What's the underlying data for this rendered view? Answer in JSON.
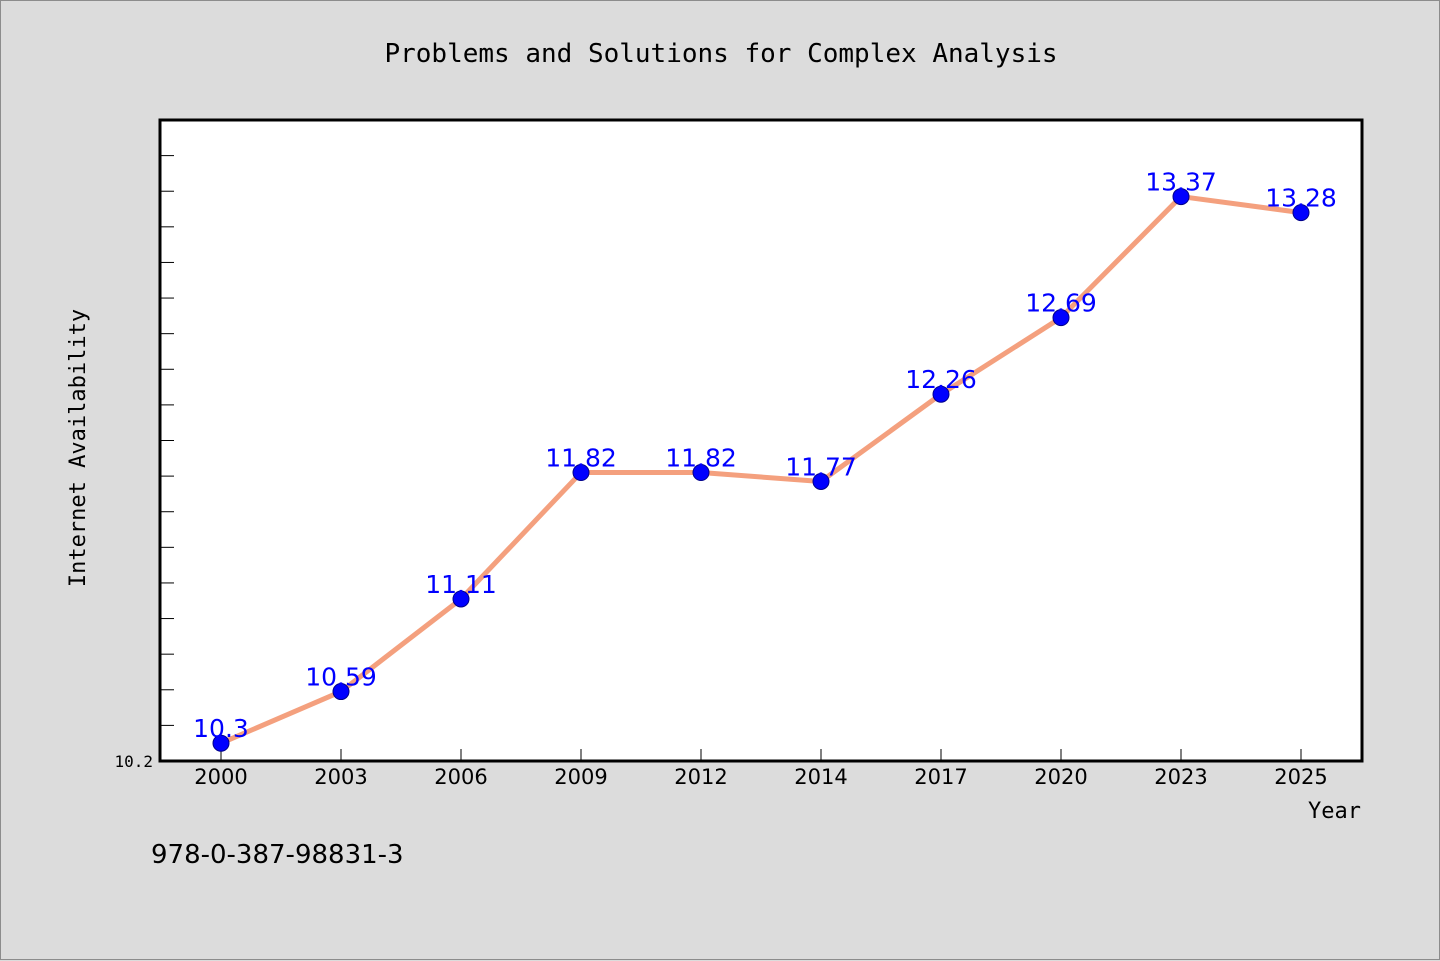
{
  "chart_data": {
    "type": "line",
    "title": "Problems and Solutions for Complex Analysis",
    "xlabel": "Year",
    "ylabel": "Internet Availability",
    "categories": [
      "2000",
      "2003",
      "2006",
      "2009",
      "2012",
      "2014",
      "2017",
      "2020",
      "2023",
      "2025"
    ],
    "series": [
      {
        "values": [
          10.3,
          10.59,
          11.11,
          11.82,
          11.82,
          11.77,
          12.26,
          12.69,
          13.37,
          13.28
        ],
        "labels": [
          "10.3",
          "10.59",
          "11.11",
          "11.82",
          "11.82",
          "11.77",
          "12.26",
          "12.69",
          "13.37",
          "13.28"
        ]
      }
    ],
    "ytick_labels": [
      "10.2"
    ],
    "ylim": [
      10.2,
      13.8
    ],
    "line_color": "#f4a07e",
    "marker_color": "#0000ff",
    "label_color": "#0000ff",
    "grid": false
  },
  "footer": {
    "isbn": "978-0-387-98831-3"
  }
}
